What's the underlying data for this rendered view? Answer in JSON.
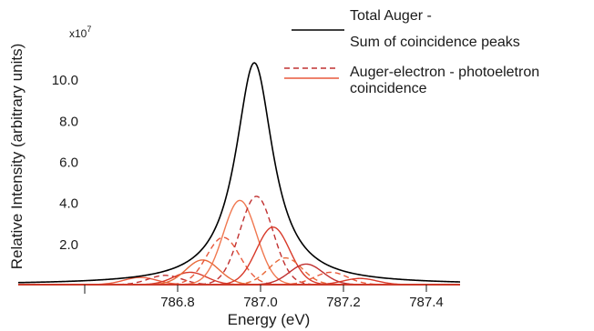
{
  "chart_data": {
    "type": "line",
    "xlabel": "Energy  (eV)",
    "ylabel": "Relative Intensity (arbitrary units)",
    "y_scale_label": "x10",
    "y_scale_exp": "7",
    "xlim": [
      786.5,
      787.5
    ],
    "ylim": [
      0,
      11.2
    ],
    "x_ticks": [
      {
        "value": 786.8,
        "label": "786.8"
      },
      {
        "value": 787.0,
        "label": "787.0"
      },
      {
        "value": 787.2,
        "label": "787.2"
      },
      {
        "value": 787.4,
        "label": "787.4"
      }
    ],
    "y_ticks": [
      {
        "value": 2,
        "label": "2.0"
      },
      {
        "value": 4,
        "label": "4.0"
      },
      {
        "value": 6,
        "label": "6.0"
      },
      {
        "value": 8,
        "label": "8.0"
      },
      {
        "value": 10,
        "label": "10.0"
      }
    ],
    "legend": [
      {
        "label_lines": [
          "Total Auger -",
          "Sum of coincidence peaks"
        ],
        "style": "solid",
        "color": "#000000"
      },
      {
        "label_lines": [
          "Auger-electron - photoeletron",
          "coincidence"
        ],
        "style": "mixed",
        "color": "#d83a2a"
      }
    ],
    "total": {
      "color": "#000000",
      "center": 786.985,
      "peak": 10.8,
      "hwhm": 0.055
    },
    "components": [
      {
        "center": 786.71,
        "peak": 0.35,
        "width": 0.04,
        "style": "solid",
        "color": "#e8593c"
      },
      {
        "center": 786.77,
        "peak": 0.45,
        "width": 0.04,
        "style": "dashed",
        "color": "#c03030"
      },
      {
        "center": 786.83,
        "peak": 0.6,
        "width": 0.04,
        "style": "solid",
        "color": "#d83a2a"
      },
      {
        "center": 786.86,
        "peak": 1.2,
        "width": 0.04,
        "style": "solid",
        "color": "#e86a3a"
      },
      {
        "center": 786.91,
        "peak": 2.3,
        "width": 0.04,
        "style": "dashed",
        "color": "#e8593c"
      },
      {
        "center": 786.95,
        "peak": 4.1,
        "width": 0.04,
        "style": "solid",
        "color": "#f07850"
      },
      {
        "center": 786.99,
        "peak": 4.3,
        "width": 0.04,
        "style": "dashed",
        "color": "#c03030"
      },
      {
        "center": 787.03,
        "peak": 2.8,
        "width": 0.04,
        "style": "solid",
        "color": "#d83a2a"
      },
      {
        "center": 787.06,
        "peak": 1.3,
        "width": 0.04,
        "style": "dashed",
        "color": "#e86a3a"
      },
      {
        "center": 787.11,
        "peak": 1.0,
        "width": 0.04,
        "style": "solid",
        "color": "#c03030"
      },
      {
        "center": 787.17,
        "peak": 0.6,
        "width": 0.04,
        "style": "dashed",
        "color": "#e8593c"
      },
      {
        "center": 787.24,
        "peak": 0.3,
        "width": 0.04,
        "style": "solid",
        "color": "#d83a2a"
      }
    ]
  }
}
